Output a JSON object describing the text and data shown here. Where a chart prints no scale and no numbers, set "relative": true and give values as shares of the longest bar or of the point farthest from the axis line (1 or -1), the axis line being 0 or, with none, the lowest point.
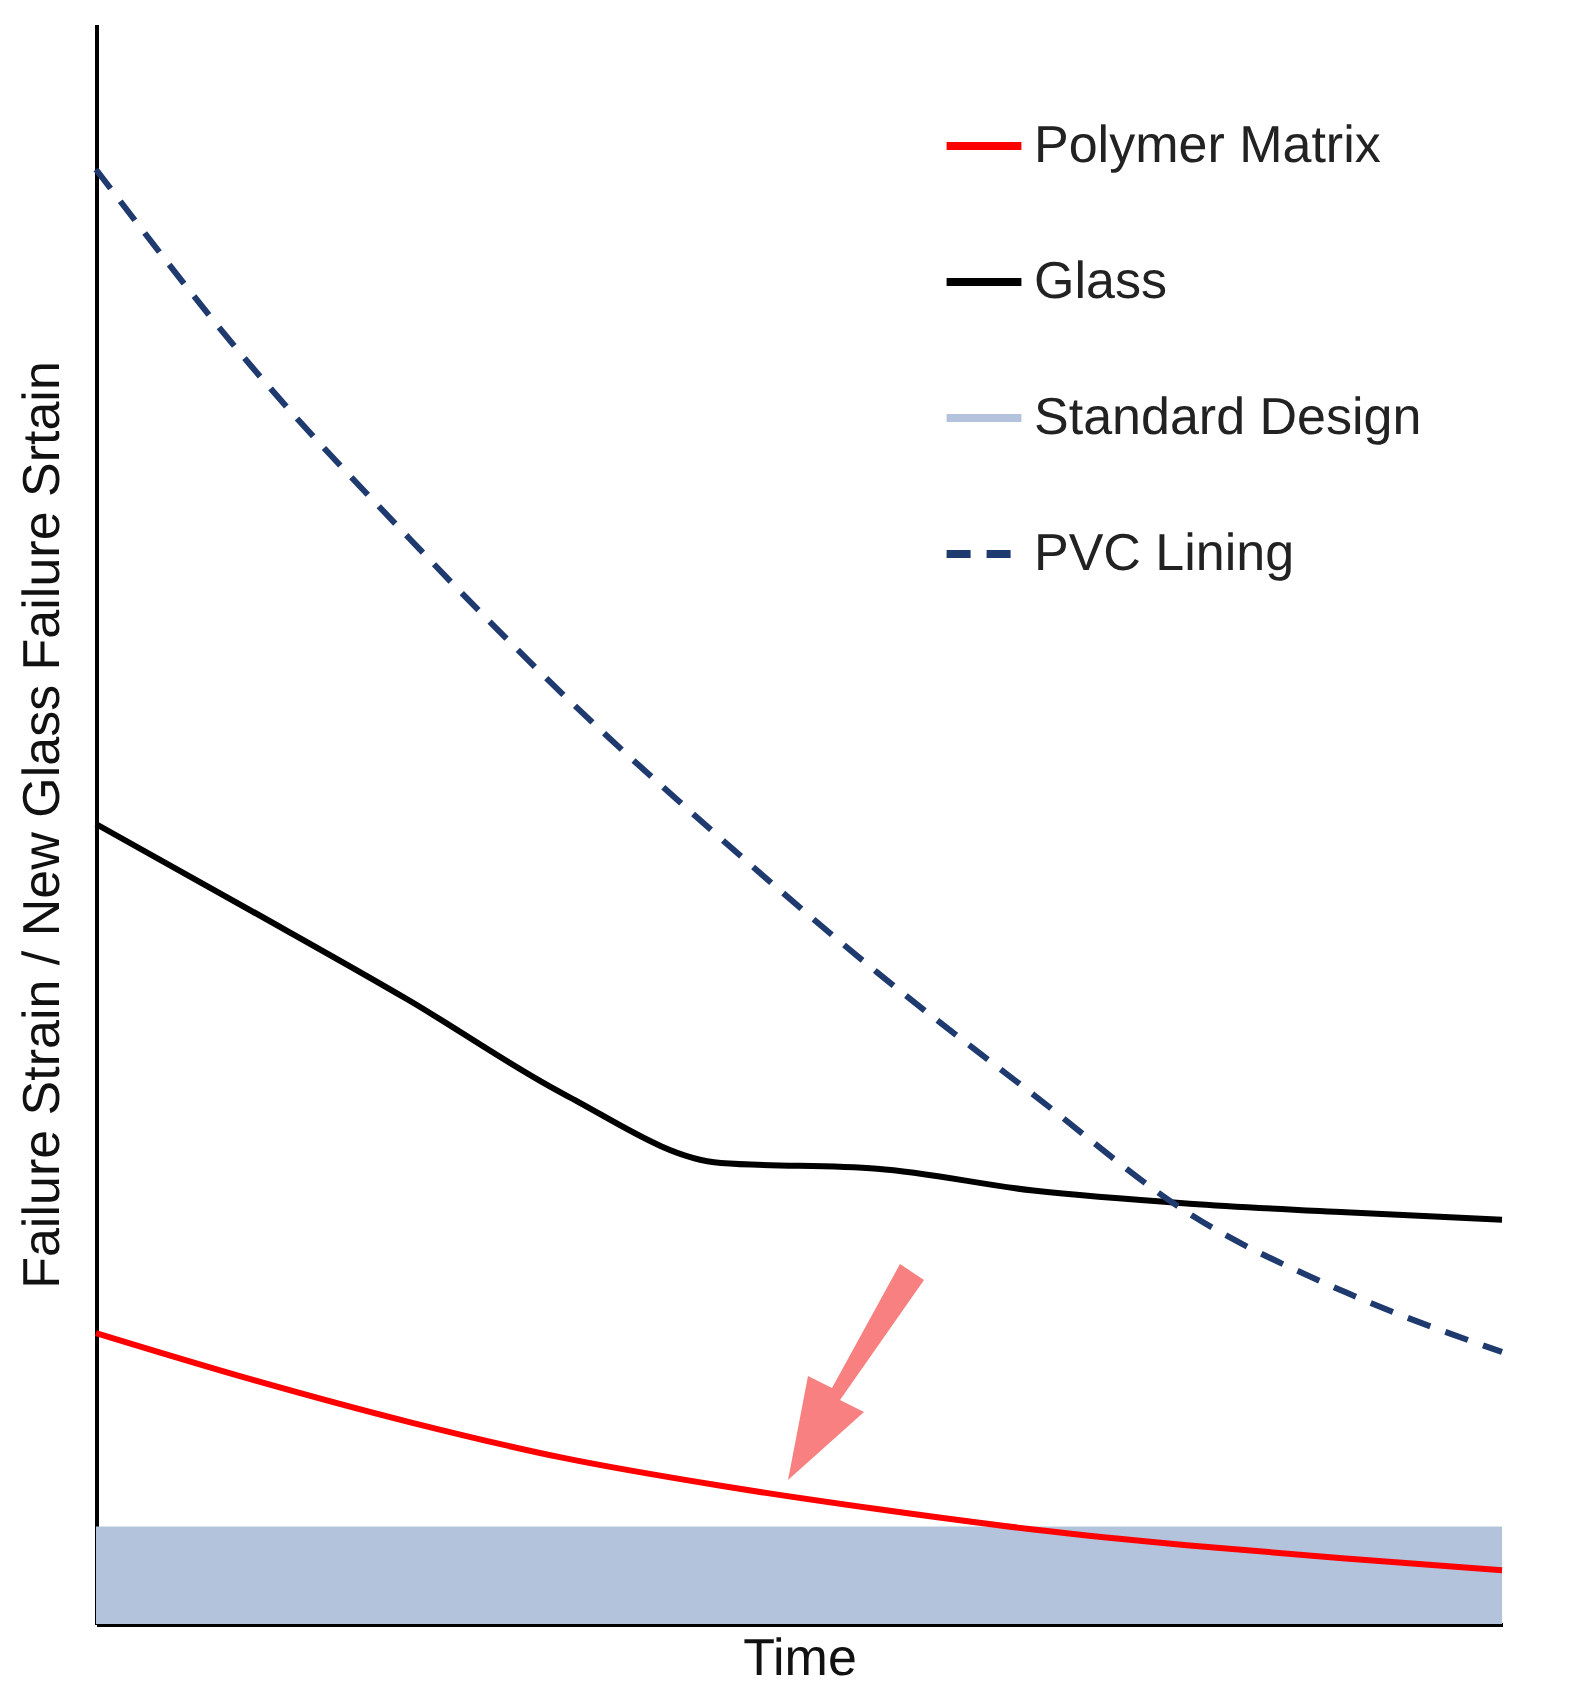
{
  "chart_data": {
    "type": "line",
    "relative": true,
    "xlabel": "Time",
    "ylabel": "Failure Strain / New Glass Failure Srtain",
    "categories": [
      null,
      null,
      null,
      null,
      null,
      null,
      null,
      null,
      null,
      null
    ],
    "series": [
      {
        "name": "Polymer Matrix",
        "color": "#ff0000",
        "values": [
          0.2,
          0.168,
          0.139,
          0.114,
          0.095,
          0.079,
          0.065,
          0.054,
          0.045,
          0.037
        ]
      },
      {
        "name": "Glass",
        "color": "#000000",
        "values": [
          0.55,
          0.49,
          0.429,
          0.364,
          0.317,
          0.313,
          0.298,
          0.289,
          0.283,
          0.278
        ]
      },
      {
        "name": "PVC Lining",
        "color": "#1f3a6e",
        "line_style": "dashed",
        "values": [
          1.0,
          0.864,
          0.747,
          0.638,
          0.54,
          0.448,
          0.364,
          0.282,
          0.228,
          0.187
        ]
      }
    ],
    "bands": [
      {
        "axis": "y",
        "from": 0,
        "to": 0.067,
        "label": "Standard Design",
        "color": "#b4c3dc"
      }
    ],
    "legend": "top right",
    "grid": false
  }
}
